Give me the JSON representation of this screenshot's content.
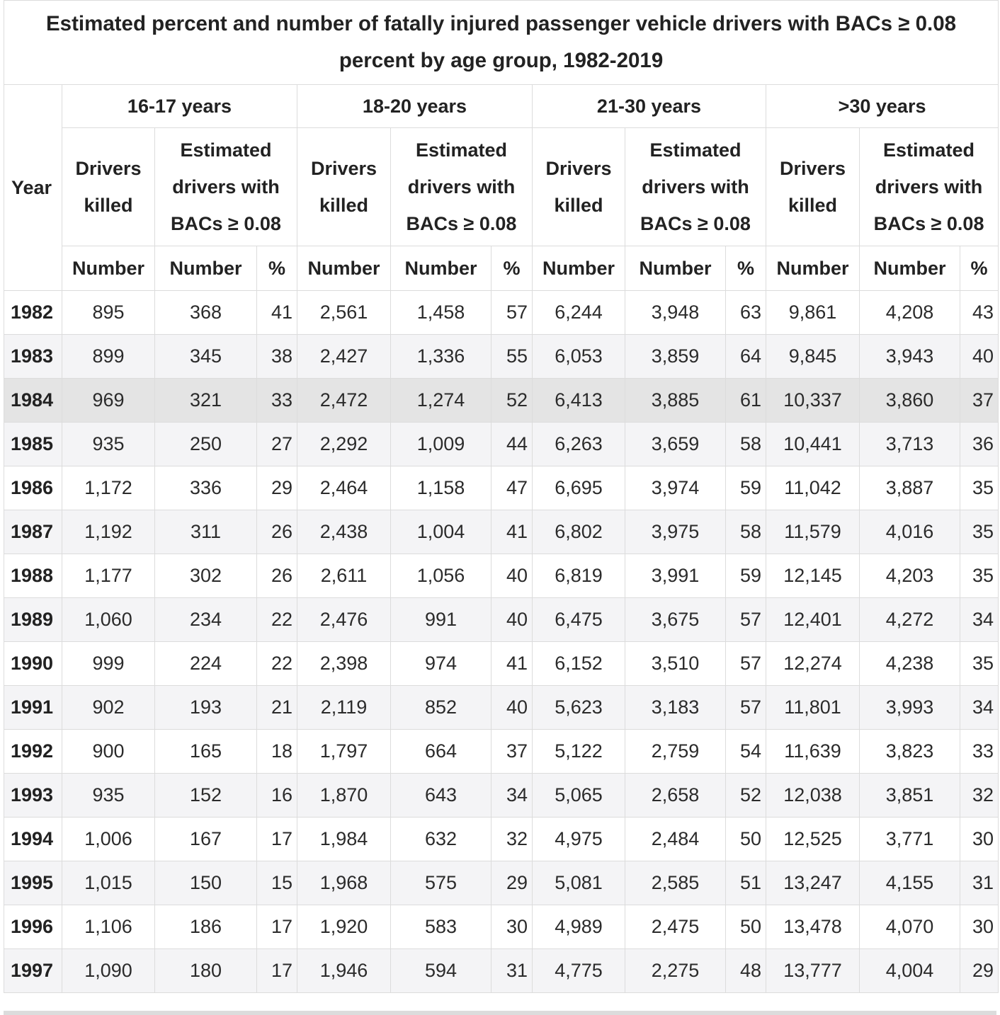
{
  "title": "Estimated percent and number of fatally injured passenger vehicle drivers with BACs ≥ 0.08 percent by age group, 1982-2019",
  "header": {
    "year": "Year",
    "groups": [
      "16-17 years",
      "18-20 years",
      "21-30 years",
      ">30 years"
    ],
    "killed": "Drivers killed",
    "estimated": "Estimated drivers with BACs ≥ 0.08",
    "number": "Number",
    "percent": "%"
  },
  "rows": [
    {
      "year": "1982",
      "c": [
        "895",
        "368",
        "41",
        "2,561",
        "1,458",
        "57",
        "6,244",
        "3,948",
        "63",
        "9,861",
        "4,208",
        "43"
      ]
    },
    {
      "year": "1983",
      "c": [
        "899",
        "345",
        "38",
        "2,427",
        "1,336",
        "55",
        "6,053",
        "3,859",
        "64",
        "9,845",
        "3,943",
        "40"
      ]
    },
    {
      "year": "1984",
      "c": [
        "969",
        "321",
        "33",
        "2,472",
        "1,274",
        "52",
        "6,413",
        "3,885",
        "61",
        "10,337",
        "3,860",
        "37"
      ]
    },
    {
      "year": "1985",
      "c": [
        "935",
        "250",
        "27",
        "2,292",
        "1,009",
        "44",
        "6,263",
        "3,659",
        "58",
        "10,441",
        "3,713",
        "36"
      ]
    },
    {
      "year": "1986",
      "c": [
        "1,172",
        "336",
        "29",
        "2,464",
        "1,158",
        "47",
        "6,695",
        "3,974",
        "59",
        "11,042",
        "3,887",
        "35"
      ]
    },
    {
      "year": "1987",
      "c": [
        "1,192",
        "311",
        "26",
        "2,438",
        "1,004",
        "41",
        "6,802",
        "3,975",
        "58",
        "11,579",
        "4,016",
        "35"
      ]
    },
    {
      "year": "1988",
      "c": [
        "1,177",
        "302",
        "26",
        "2,611",
        "1,056",
        "40",
        "6,819",
        "3,991",
        "59",
        "12,145",
        "4,203",
        "35"
      ]
    },
    {
      "year": "1989",
      "c": [
        "1,060",
        "234",
        "22",
        "2,476",
        "991",
        "40",
        "6,475",
        "3,675",
        "57",
        "12,401",
        "4,272",
        "34"
      ]
    },
    {
      "year": "1990",
      "c": [
        "999",
        "224",
        "22",
        "2,398",
        "974",
        "41",
        "6,152",
        "3,510",
        "57",
        "12,274",
        "4,238",
        "35"
      ]
    },
    {
      "year": "1991",
      "c": [
        "902",
        "193",
        "21",
        "2,119",
        "852",
        "40",
        "5,623",
        "3,183",
        "57",
        "11,801",
        "3,993",
        "34"
      ]
    },
    {
      "year": "1992",
      "c": [
        "900",
        "165",
        "18",
        "1,797",
        "664",
        "37",
        "5,122",
        "2,759",
        "54",
        "11,639",
        "3,823",
        "33"
      ]
    },
    {
      "year": "1993",
      "c": [
        "935",
        "152",
        "16",
        "1,870",
        "643",
        "34",
        "5,065",
        "2,658",
        "52",
        "12,038",
        "3,851",
        "32"
      ]
    },
    {
      "year": "1994",
      "c": [
        "1,006",
        "167",
        "17",
        "1,984",
        "632",
        "32",
        "4,975",
        "2,484",
        "50",
        "12,525",
        "3,771",
        "30"
      ]
    },
    {
      "year": "1995",
      "c": [
        "1,015",
        "150",
        "15",
        "1,968",
        "575",
        "29",
        "5,081",
        "2,585",
        "51",
        "13,247",
        "4,155",
        "31"
      ]
    },
    {
      "year": "1996",
      "c": [
        "1,106",
        "186",
        "17",
        "1,920",
        "583",
        "30",
        "4,989",
        "2,475",
        "50",
        "13,478",
        "4,070",
        "30"
      ]
    },
    {
      "year": "1997",
      "c": [
        "1,090",
        "180",
        "17",
        "1,946",
        "594",
        "31",
        "4,775",
        "2,275",
        "48",
        "13,777",
        "4,004",
        "29"
      ]
    }
  ],
  "highlighted_year": "1984"
}
